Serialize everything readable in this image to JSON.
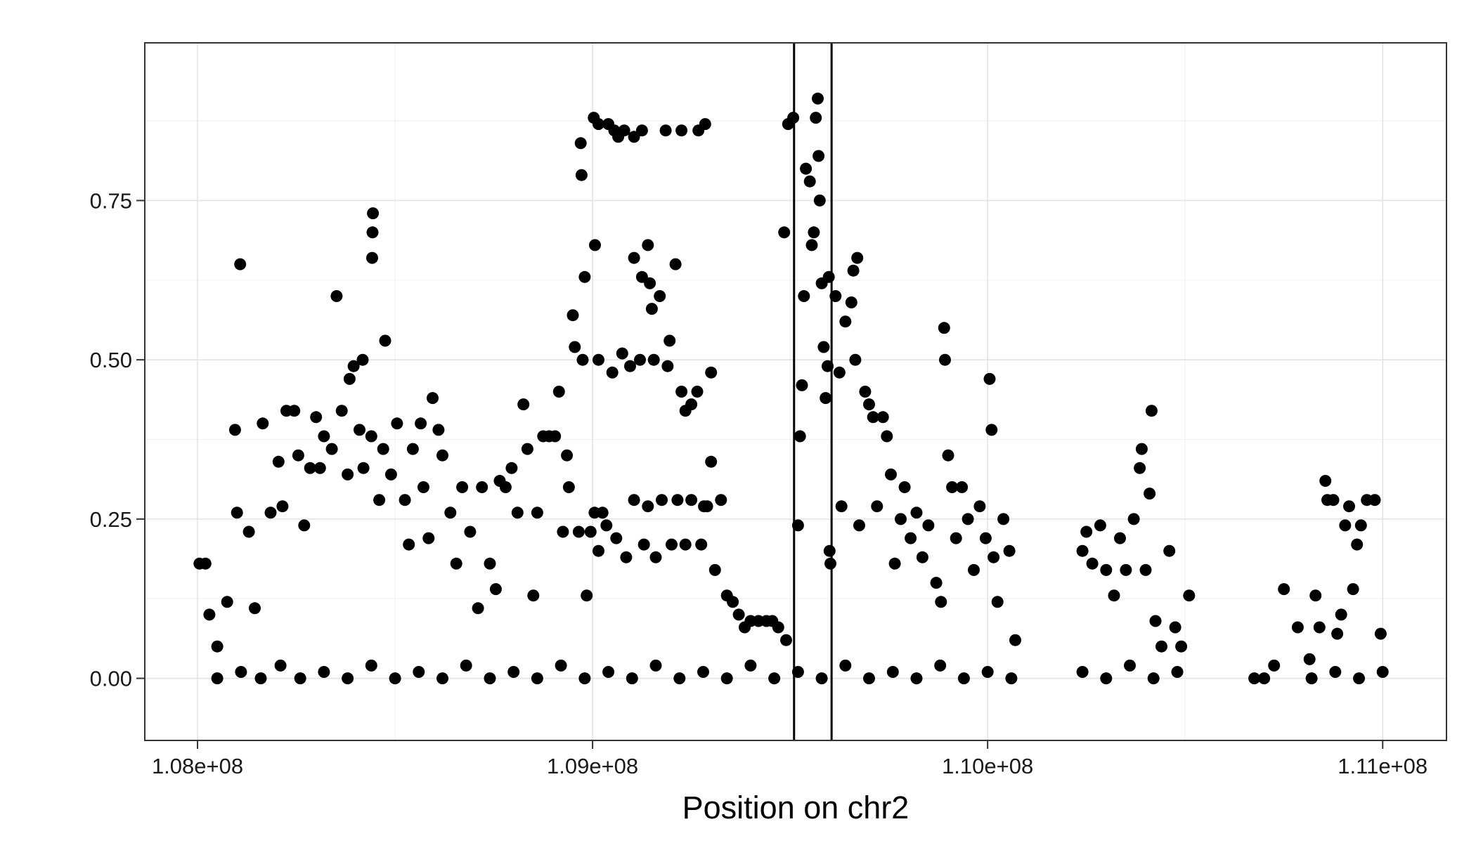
{
  "chart_data": {
    "type": "scatter",
    "title": "",
    "xlabel": "Position on chr2",
    "ylabel": "",
    "xlim": [
      107866500,
      111161500
    ],
    "ylim": [
      -0.0975,
      0.9975
    ],
    "x_ticks": [
      108000000,
      109000000,
      110000000,
      111000000
    ],
    "x_tick_labels": [
      "1.08e+08",
      "1.09e+08",
      "1.10e+08",
      "1.11e+08"
    ],
    "y_ticks": [
      0.0,
      0.25,
      0.5,
      0.75
    ],
    "y_tick_labels": [
      "0.00",
      "0.25",
      "0.50",
      "0.75"
    ],
    "grid": true,
    "legend": "none",
    "point_color": "#000000",
    "reference_lines_x": [
      109510000,
      109605000
    ],
    "series": [
      {
        "values": [
          [
            108005000,
            0.18
          ],
          [
            108020000,
            0.18
          ],
          [
            108030000,
            0.1
          ],
          [
            108050000,
            0.05
          ],
          [
            108075000,
            0.12
          ],
          [
            108095000,
            0.39
          ],
          [
            108100000,
            0.26
          ],
          [
            108108000,
            0.65
          ],
          [
            108130000,
            0.23
          ],
          [
            108145000,
            0.11
          ],
          [
            108165000,
            0.4
          ],
          [
            108185000,
            0.26
          ],
          [
            108205000,
            0.34
          ],
          [
            108215000,
            0.27
          ],
          [
            108225000,
            0.42
          ],
          [
            108245000,
            0.42
          ],
          [
            108255000,
            0.35
          ],
          [
            108270000,
            0.24
          ],
          [
            108285000,
            0.33
          ],
          [
            108300000,
            0.41
          ],
          [
            108310000,
            0.33
          ],
          [
            108320000,
            0.38
          ],
          [
            108340000,
            0.36
          ],
          [
            108352000,
            0.6
          ],
          [
            108365000,
            0.42
          ],
          [
            108380000,
            0.32
          ],
          [
            108385000,
            0.47
          ],
          [
            108395000,
            0.49
          ],
          [
            108410000,
            0.39
          ],
          [
            108418000,
            0.5
          ],
          [
            108420000,
            0.33
          ],
          [
            108440000,
            0.38
          ],
          [
            108442000,
            0.66
          ],
          [
            108443000,
            0.7
          ],
          [
            108444000,
            0.73
          ],
          [
            108460000,
            0.28
          ],
          [
            108470000,
            0.36
          ],
          [
            108475000,
            0.53
          ],
          [
            108490000,
            0.32
          ],
          [
            108505000,
            0.4
          ],
          [
            108525000,
            0.28
          ],
          [
            108535000,
            0.21
          ],
          [
            108545000,
            0.36
          ],
          [
            108565000,
            0.4
          ],
          [
            108572000,
            0.3
          ],
          [
            108585000,
            0.22
          ],
          [
            108595000,
            0.44
          ],
          [
            108610000,
            0.39
          ],
          [
            108620000,
            0.35
          ],
          [
            108640000,
            0.26
          ],
          [
            108655000,
            0.18
          ],
          [
            108670000,
            0.3
          ],
          [
            108690000,
            0.23
          ],
          [
            108710000,
            0.11
          ],
          [
            108720000,
            0.3
          ],
          [
            108740000,
            0.18
          ],
          [
            108755000,
            0.14
          ],
          [
            108765000,
            0.31
          ],
          [
            108780000,
            0.3
          ],
          [
            108795000,
            0.33
          ],
          [
            108810000,
            0.26
          ],
          [
            108825000,
            0.43
          ],
          [
            108835000,
            0.36
          ],
          [
            108850000,
            0.13
          ],
          [
            108860000,
            0.26
          ],
          [
            108875000,
            0.38
          ],
          [
            108890000,
            0.38
          ],
          [
            108905000,
            0.38
          ],
          [
            108915000,
            0.45
          ],
          [
            108925000,
            0.23
          ],
          [
            108935000,
            0.35
          ],
          [
            108940000,
            0.3
          ],
          [
            108950000,
            0.57
          ],
          [
            108955000,
            0.52
          ],
          [
            108965000,
            0.23
          ],
          [
            108970000,
            0.84
          ],
          [
            108972000,
            0.79
          ],
          [
            108975000,
            0.5
          ],
          [
            108980000,
            0.63
          ],
          [
            108985000,
            0.13
          ],
          [
            108995000,
            0.23
          ],
          [
            109005000,
            0.26
          ],
          [
            109015000,
            0.2
          ],
          [
            109015000,
            0.5
          ],
          [
            109025000,
            0.26
          ],
          [
            109035000,
            0.24
          ],
          [
            109050000,
            0.48
          ],
          [
            109060000,
            0.22
          ],
          [
            109075000,
            0.51
          ],
          [
            109085000,
            0.19
          ],
          [
            109095000,
            0.49
          ],
          [
            109105000,
            0.28
          ],
          [
            109120000,
            0.5
          ],
          [
            109130000,
            0.21
          ],
          [
            109140000,
            0.27
          ],
          [
            109155000,
            0.5
          ],
          [
            109160000,
            0.19
          ],
          [
            109175000,
            0.28
          ],
          [
            109190000,
            0.49
          ],
          [
            109200000,
            0.21
          ],
          [
            109215000,
            0.28
          ],
          [
            109225000,
            0.45
          ],
          [
            109235000,
            0.21
          ],
          [
            109250000,
            0.28
          ],
          [
            109265000,
            0.45
          ],
          [
            109275000,
            0.21
          ],
          [
            109290000,
            0.27
          ],
          [
            109300000,
            0.48
          ],
          [
            109310000,
            0.17
          ],
          [
            109325000,
            0.28
          ],
          [
            109340000,
            0.13
          ],
          [
            109355000,
            0.12
          ],
          [
            109370000,
            0.1
          ],
          [
            109385000,
            0.08
          ],
          [
            109400000,
            0.09
          ],
          [
            109420000,
            0.09
          ],
          [
            109440000,
            0.09
          ],
          [
            109455000,
            0.09
          ],
          [
            109470000,
            0.08
          ],
          [
            109490000,
            0.06
          ],
          [
            109003000,
            0.88
          ],
          [
            109015000,
            0.87
          ],
          [
            109040000,
            0.87
          ],
          [
            109055000,
            0.86
          ],
          [
            109065000,
            0.85
          ],
          [
            109080000,
            0.86
          ],
          [
            109105000,
            0.85
          ],
          [
            109125000,
            0.86
          ],
          [
            109185000,
            0.86
          ],
          [
            109225000,
            0.86
          ],
          [
            109268000,
            0.86
          ],
          [
            109285000,
            0.87
          ],
          [
            109006000,
            0.68
          ],
          [
            109105000,
            0.66
          ],
          [
            109125000,
            0.63
          ],
          [
            109140000,
            0.68
          ],
          [
            109145000,
            0.62
          ],
          [
            109150000,
            0.58
          ],
          [
            109170000,
            0.6
          ],
          [
            109195000,
            0.53
          ],
          [
            109210000,
            0.65
          ],
          [
            109235000,
            0.42
          ],
          [
            109250000,
            0.43
          ],
          [
            109282000,
            0.27
          ],
          [
            109300000,
            0.34
          ],
          [
            109485000,
            0.7
          ],
          [
            109495000,
            0.87
          ],
          [
            109508000,
            0.88
          ],
          [
            109520000,
            0.24
          ],
          [
            109525000,
            0.38
          ],
          [
            109530000,
            0.46
          ],
          [
            109535000,
            0.6
          ],
          [
            109540000,
            0.8
          ],
          [
            109550000,
            0.78
          ],
          [
            109555000,
            0.68
          ],
          [
            109560000,
            0.7
          ],
          [
            109565000,
            0.88
          ],
          [
            109570000,
            0.91
          ],
          [
            109572000,
            0.82
          ],
          [
            109575000,
            0.75
          ],
          [
            109580000,
            0.62
          ],
          [
            109585000,
            0.52
          ],
          [
            109590000,
            0.44
          ],
          [
            109595000,
            0.49
          ],
          [
            109598000,
            0.63
          ],
          [
            109600000,
            0.2
          ],
          [
            109602000,
            0.18
          ],
          [
            109615000,
            0.6
          ],
          [
            109625000,
            0.48
          ],
          [
            109630000,
            0.27
          ],
          [
            109640000,
            0.56
          ],
          [
            109655000,
            0.59
          ],
          [
            109660000,
            0.64
          ],
          [
            109665000,
            0.5
          ],
          [
            109670000,
            0.66
          ],
          [
            109675000,
            0.24
          ],
          [
            109690000,
            0.45
          ],
          [
            109700000,
            0.43
          ],
          [
            109710000,
            0.41
          ],
          [
            109720000,
            0.27
          ],
          [
            109735000,
            0.41
          ],
          [
            109745000,
            0.38
          ],
          [
            109755000,
            0.32
          ],
          [
            109765000,
            0.18
          ],
          [
            109780000,
            0.25
          ],
          [
            109790000,
            0.3
          ],
          [
            109805000,
            0.22
          ],
          [
            109820000,
            0.26
          ],
          [
            109835000,
            0.19
          ],
          [
            109850000,
            0.24
          ],
          [
            109870000,
            0.15
          ],
          [
            109882000,
            0.12
          ],
          [
            109890000,
            0.55
          ],
          [
            109892000,
            0.5
          ],
          [
            109900000,
            0.35
          ],
          [
            109910000,
            0.3
          ],
          [
            109920000,
            0.22
          ],
          [
            109935000,
            0.3
          ],
          [
            109950000,
            0.25
          ],
          [
            109965000,
            0.17
          ],
          [
            109980000,
            0.27
          ],
          [
            109995000,
            0.22
          ],
          [
            110005000,
            0.47
          ],
          [
            110010000,
            0.39
          ],
          [
            110015000,
            0.19
          ],
          [
            110025000,
            0.12
          ],
          [
            110040000,
            0.25
          ],
          [
            110055000,
            0.2
          ],
          [
            110070000,
            0.06
          ],
          [
            110240000,
            0.2
          ],
          [
            110250000,
            0.23
          ],
          [
            110265000,
            0.18
          ],
          [
            110285000,
            0.24
          ],
          [
            110300000,
            0.17
          ],
          [
            110320000,
            0.13
          ],
          [
            110335000,
            0.22
          ],
          [
            110350000,
            0.17
          ],
          [
            110370000,
            0.25
          ],
          [
            110385000,
            0.33
          ],
          [
            110390000,
            0.36
          ],
          [
            110400000,
            0.17
          ],
          [
            110410000,
            0.29
          ],
          [
            110415000,
            0.42
          ],
          [
            110425000,
            0.09
          ],
          [
            110440000,
            0.05
          ],
          [
            110460000,
            0.2
          ],
          [
            110475000,
            0.08
          ],
          [
            110490000,
            0.05
          ],
          [
            110510000,
            0.13
          ],
          [
            110675000,
            0.0
          ],
          [
            110700000,
            0.0
          ],
          [
            110725000,
            0.02
          ],
          [
            110750000,
            0.14
          ],
          [
            110785000,
            0.08
          ],
          [
            110815000,
            0.03
          ],
          [
            110830000,
            0.13
          ],
          [
            110840000,
            0.08
          ],
          [
            110855000,
            0.31
          ],
          [
            110860000,
            0.28
          ],
          [
            110875000,
            0.28
          ],
          [
            110885000,
            0.07
          ],
          [
            110895000,
            0.1
          ],
          [
            110905000,
            0.24
          ],
          [
            110915000,
            0.27
          ],
          [
            110925000,
            0.14
          ],
          [
            110935000,
            0.21
          ],
          [
            110945000,
            0.24
          ],
          [
            110960000,
            0.28
          ],
          [
            110980000,
            0.28
          ],
          [
            110995000,
            0.07
          ],
          [
            108050000,
            0.0
          ],
          [
            108110000,
            0.01
          ],
          [
            108160000,
            0.0
          ],
          [
            108210000,
            0.02
          ],
          [
            108260000,
            0.0
          ],
          [
            108320000,
            0.01
          ],
          [
            108380000,
            0.0
          ],
          [
            108440000,
            0.02
          ],
          [
            108500000,
            0.0
          ],
          [
            108560000,
            0.01
          ],
          [
            108620000,
            0.0
          ],
          [
            108680000,
            0.02
          ],
          [
            108740000,
            0.0
          ],
          [
            108800000,
            0.01
          ],
          [
            108860000,
            0.0
          ],
          [
            108920000,
            0.02
          ],
          [
            108980000,
            0.0
          ],
          [
            109040000,
            0.01
          ],
          [
            109100000,
            0.0
          ],
          [
            109160000,
            0.02
          ],
          [
            109220000,
            0.0
          ],
          [
            109280000,
            0.01
          ],
          [
            109340000,
            0.0
          ],
          [
            109400000,
            0.02
          ],
          [
            109460000,
            0.0
          ],
          [
            109520000,
            0.01
          ],
          [
            109580000,
            0.0
          ],
          [
            109640000,
            0.02
          ],
          [
            109700000,
            0.0
          ],
          [
            109760000,
            0.01
          ],
          [
            109820000,
            0.0
          ],
          [
            109880000,
            0.02
          ],
          [
            109940000,
            0.0
          ],
          [
            110000000,
            0.01
          ],
          [
            110060000,
            0.0
          ],
          [
            110240000,
            0.01
          ],
          [
            110300000,
            0.0
          ],
          [
            110360000,
            0.02
          ],
          [
            110420000,
            0.0
          ],
          [
            110480000,
            0.01
          ],
          [
            110820000,
            0.0
          ],
          [
            110880000,
            0.01
          ],
          [
            110940000,
            0.0
          ],
          [
            111000000,
            0.01
          ]
        ]
      }
    ]
  }
}
